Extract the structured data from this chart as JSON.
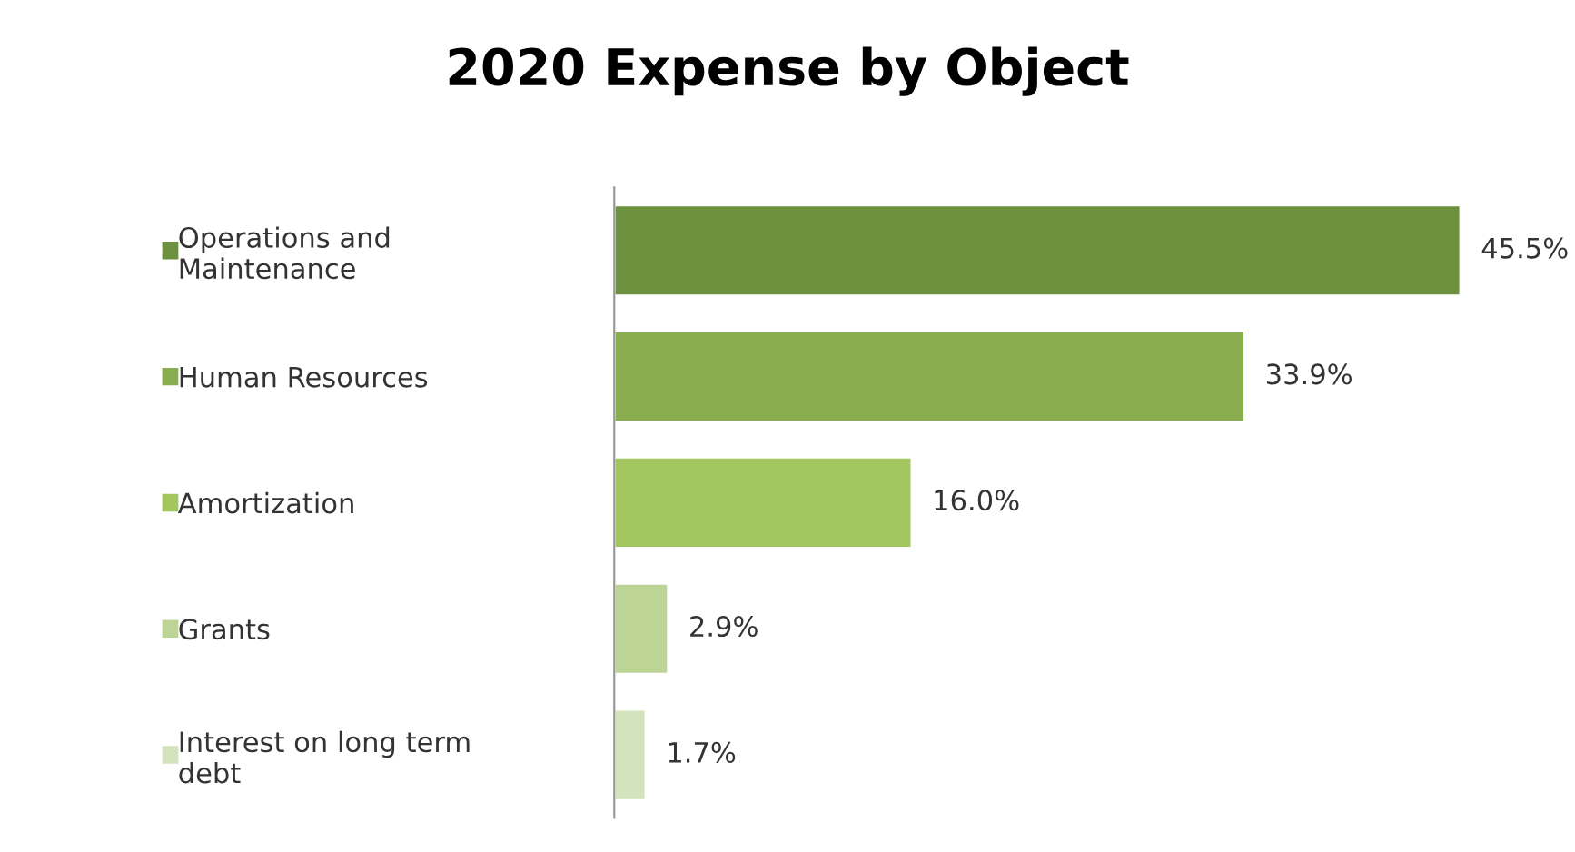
{
  "chart_data": {
    "type": "bar",
    "orientation": "horizontal",
    "title": "2020 Expense by Object",
    "categories": [
      "Operations and\nMaintenance",
      "Human Resources",
      "Amortization",
      "Grants",
      "Interest on long term\ndebt"
    ],
    "values": [
      45.5,
      33.9,
      16.0,
      2.9,
      1.7
    ],
    "colors": [
      "#6e9140",
      "#8aad4f",
      "#a3c65f",
      "#bcd597",
      "#d3e3bb"
    ],
    "value_labels": [
      "45.5%",
      "33.9%",
      "16.0%",
      "2.9%",
      "1.7%"
    ]
  }
}
